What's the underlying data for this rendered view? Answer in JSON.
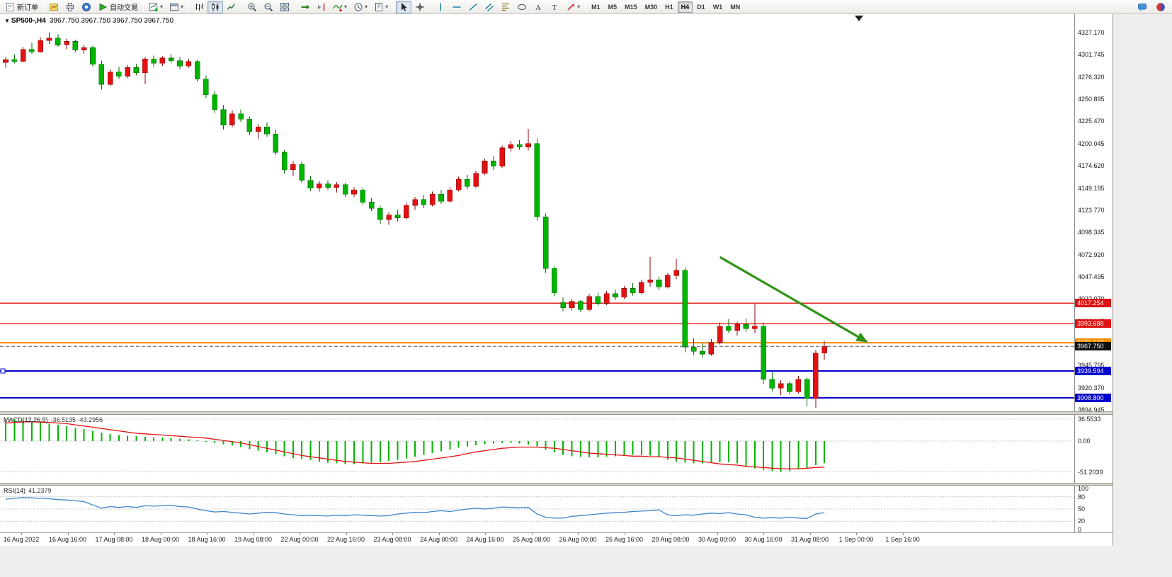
{
  "colors": {
    "bull": "#e31212",
    "bull_dark": "#8f0606",
    "bear": "#00b500",
    "bear_dark": "#006d00",
    "macd_hist": "#00b500",
    "macd_signal": "#e31212",
    "rsi_line": "#3d85c8",
    "grid_dash": "#c6c6c6",
    "chart_bg": "#ffffff",
    "toolbar_bg": "#ecebe8"
  },
  "toolbar": {
    "new_order_label": "新订单",
    "autotrading_label": "自动交易",
    "timeframes": [
      "M1",
      "M5",
      "M15",
      "M30",
      "H1",
      "H4",
      "D1",
      "W1",
      "MN"
    ],
    "active_timeframe": "H4",
    "groups": [
      {
        "items": [
          {
            "icon": "new-order-icon",
            "name": "new-order-button",
            "label_key": "new_order_label"
          }
        ]
      },
      {
        "items": [
          {
            "icon": "charts-icon",
            "name": "charts-button"
          },
          {
            "icon": "print-icon",
            "name": "print-button"
          },
          {
            "icon": "community-icon",
            "name": "community-button"
          },
          {
            "icon": "autotrading-icon",
            "name": "autotrading-button",
            "label_key": "autotrading_label"
          }
        ]
      },
      {
        "items": [
          {
            "icon": "new-chart-icon",
            "name": "new-chart-button",
            "caret": true
          },
          {
            "icon": "window-icon",
            "name": "profiles-button",
            "caret": true
          }
        ]
      },
      {
        "items": [
          {
            "icon": "bar-chart-icon",
            "name": "bar-chart-button"
          },
          {
            "icon": "candlestick-icon",
            "name": "candlestick-button",
            "active": true
          },
          {
            "icon": "line-chart-icon",
            "name": "line-chart-button"
          }
        ]
      },
      {
        "items": [
          {
            "icon": "zoom-in-icon",
            "name": "zoom-in-button"
          },
          {
            "icon": "zoom-out-icon",
            "name": "zoom-out-button"
          },
          {
            "icon": "tile-windows-icon",
            "name": "tile-windows-button"
          }
        ]
      },
      {
        "items": [
          {
            "icon": "auto-scroll-icon",
            "name": "auto-scroll-button"
          },
          {
            "icon": "chart-shift-icon",
            "name": "chart-shift-button"
          },
          {
            "icon": "indicators-icon",
            "name": "indicators-button",
            "caret": true
          },
          {
            "icon": "clock-icon",
            "name": "periods-button",
            "caret": true
          },
          {
            "icon": "template-icon",
            "name": "templates-button",
            "caret": true
          }
        ]
      },
      {
        "items": [
          {
            "icon": "cursor-icon",
            "name": "cursor-button",
            "active": true
          },
          {
            "icon": "crosshair-icon",
            "name": "crosshair-button"
          }
        ]
      },
      {
        "items": [
          {
            "icon": "vline-icon",
            "name": "vertical-line-button"
          },
          {
            "icon": "hline-icon",
            "name": "horizontal-line-button"
          },
          {
            "icon": "trendline-icon",
            "name": "trendline-button"
          },
          {
            "icon": "channel-icon",
            "name": "channel-button"
          },
          {
            "icon": "fibonacci-icon",
            "name": "fibonacci-button"
          },
          {
            "icon": "shapes-icon",
            "name": "shapes-button"
          },
          {
            "icon": "text-icon",
            "name": "text-button"
          },
          {
            "icon": "label-icon",
            "name": "text-label-button"
          },
          {
            "icon": "arrows-icon",
            "name": "arrows-button",
            "caret": true
          }
        ]
      },
      {
        "type": "timeframes"
      }
    ],
    "right_items": [
      {
        "icon": "chat-icon",
        "name": "chat-button"
      },
      {
        "icon": "record-icon",
        "name": "metaquotes-button"
      }
    ]
  },
  "header": {
    "symbol": "SP500-,H4",
    "ohlc": "3967.750 3967.750 3967.750 3967.750"
  },
  "price_axis": {
    "ticks": [
      "4327.170",
      "4301.745",
      "4276.320",
      "4250.895",
      "4225.470",
      "4200.045",
      "4174.620",
      "4149.195",
      "4123.770",
      "4098.345",
      "4072.920",
      "4047.495",
      "4022.070",
      "3996.645",
      "3971.220",
      "3945.795",
      "3920.370",
      "3894.945"
    ]
  },
  "hlines": [
    {
      "price": 4017.254,
      "label": "4017.254",
      "color": "#dd1111",
      "width": 1.4,
      "dashed": false,
      "tag_bg": "#dd1111"
    },
    {
      "price": 3993.688,
      "label": "3993.688",
      "color": "#dd1111",
      "width": 1.4,
      "dashed": false,
      "tag_bg": "#dd1111"
    },
    {
      "price": 3971.937,
      "label": "3971.937",
      "color": "#ff8c00",
      "width": 2,
      "dashed": false,
      "tag_bg": "#ff8c00"
    },
    {
      "price": 3967.75,
      "label": "3967.750",
      "color": "#555555",
      "width": 1,
      "dashed": true,
      "tag_bg": "#111111"
    },
    {
      "price": 3939.594,
      "label": "3939.594",
      "color": "#0000cc",
      "width": 2,
      "dashed": false,
      "tag_bg": "#0000cc",
      "handle": true
    },
    {
      "price": 3908.8,
      "label": "3908.800",
      "color": "#0000cc",
      "width": 2,
      "dashed": false,
      "tag_bg": "#0000cc"
    }
  ],
  "chart_data": {
    "type": "candlestick",
    "symbol": "SP500-",
    "timeframe": "H4",
    "ylim": [
      3893,
      4333
    ],
    "candles": [
      [
        4293,
        4299,
        4287,
        4296
      ],
      [
        4296,
        4302,
        4292,
        4294
      ],
      [
        4294,
        4311,
        4293,
        4308
      ],
      [
        4308,
        4316,
        4303,
        4305
      ],
      [
        4305,
        4322,
        4304,
        4318
      ],
      [
        4318,
        4327,
        4314,
        4321
      ],
      [
        4321,
        4325,
        4311,
        4313
      ],
      [
        4313,
        4320,
        4308,
        4317
      ],
      [
        4317,
        4319,
        4305,
        4307
      ],
      [
        4307,
        4313,
        4303,
        4310
      ],
      [
        4310,
        4312,
        4288,
        4291
      ],
      [
        4291,
        4295,
        4262,
        4268
      ],
      [
        4268,
        4285,
        4266,
        4282
      ],
      [
        4282,
        4288,
        4274,
        4277
      ],
      [
        4277,
        4290,
        4275,
        4287
      ],
      [
        4287,
        4291,
        4278,
        4281
      ],
      [
        4281,
        4299,
        4268,
        4297
      ],
      [
        4297,
        4301,
        4288,
        4292
      ],
      [
        4292,
        4300,
        4289,
        4298
      ],
      [
        4298,
        4303,
        4292,
        4295
      ],
      [
        4295,
        4299,
        4285,
        4289
      ],
      [
        4289,
        4297,
        4287,
        4294
      ],
      [
        4294,
        4296,
        4271,
        4274
      ],
      [
        4274,
        4278,
        4252,
        4256
      ],
      [
        4256,
        4260,
        4235,
        4239
      ],
      [
        4239,
        4244,
        4216,
        4221
      ],
      [
        4221,
        4238,
        4219,
        4234
      ],
      [
        4234,
        4239,
        4225,
        4228
      ],
      [
        4228,
        4231,
        4210,
        4214
      ],
      [
        4214,
        4222,
        4205,
        4219
      ],
      [
        4219,
        4224,
        4208,
        4211
      ],
      [
        4211,
        4216,
        4187,
        4190
      ],
      [
        4190,
        4193,
        4166,
        4170
      ],
      [
        4170,
        4180,
        4163,
        4176
      ],
      [
        4176,
        4179,
        4155,
        4158
      ],
      [
        4158,
        4163,
        4146,
        4149
      ],
      [
        4149,
        4157,
        4145,
        4154
      ],
      [
        4154,
        4158,
        4147,
        4150
      ],
      [
        4150,
        4156,
        4144,
        4153
      ],
      [
        4153,
        4155,
        4139,
        4142
      ],
      [
        4142,
        4150,
        4139,
        4147
      ],
      [
        4147,
        4149,
        4130,
        4133
      ],
      [
        4133,
        4138,
        4123,
        4126
      ],
      [
        4126,
        4129,
        4108,
        4113
      ],
      [
        4113,
        4121,
        4107,
        4118
      ],
      [
        4118,
        4124,
        4111,
        4115
      ],
      [
        4115,
        4132,
        4113,
        4129
      ],
      [
        4129,
        4139,
        4124,
        4136
      ],
      [
        4136,
        4141,
        4126,
        4130
      ],
      [
        4130,
        4145,
        4128,
        4142
      ],
      [
        4142,
        4147,
        4131,
        4134
      ],
      [
        4134,
        4150,
        4132,
        4147
      ],
      [
        4147,
        4162,
        4145,
        4159
      ],
      [
        4159,
        4164,
        4148,
        4151
      ],
      [
        4151,
        4169,
        4149,
        4166
      ],
      [
        4166,
        4183,
        4164,
        4180
      ],
      [
        4180,
        4186,
        4170,
        4174
      ],
      [
        4174,
        4198,
        4172,
        4195
      ],
      [
        4195,
        4203,
        4191,
        4199
      ],
      [
        4199,
        4204,
        4193,
        4196
      ],
      [
        4196,
        4217,
        4192,
        4200
      ],
      [
        4200,
        4206,
        4112,
        4116
      ],
      [
        4116,
        4120,
        4052,
        4057
      ],
      [
        4057,
        4059,
        4025,
        4029
      ],
      [
        4018,
        4024,
        4008,
        4012
      ],
      [
        4012,
        4022,
        4009,
        4019
      ],
      [
        4019,
        4021,
        4007,
        4010
      ],
      [
        4010,
        4028,
        4008,
        4025
      ],
      [
        4025,
        4029,
        4014,
        4017
      ],
      [
        4017,
        4031,
        4015,
        4028
      ],
      [
        4028,
        4033,
        4021,
        4024
      ],
      [
        4024,
        4037,
        4022,
        4034
      ],
      [
        4034,
        4040,
        4026,
        4029
      ],
      [
        4029,
        4044,
        4027,
        4041
      ],
      [
        4041,
        4070,
        4036,
        4044
      ],
      [
        4044,
        4048,
        4032,
        4036
      ],
      [
        4036,
        4052,
        4034,
        4049
      ],
      [
        4049,
        4068,
        4045,
        4055
      ],
      [
        4055,
        4058,
        3961,
        3967
      ],
      [
        3967,
        3977,
        3958,
        3962
      ],
      [
        3962,
        3972,
        3955,
        3959
      ],
      [
        3959,
        3976,
        3957,
        3972
      ],
      [
        3972,
        3995,
        3970,
        3991
      ],
      [
        3991,
        3999,
        3983,
        3986
      ],
      [
        3986,
        3996,
        3980,
        3993
      ],
      [
        3993,
        4000,
        3984,
        3988
      ],
      [
        3988,
        4016,
        3983,
        3991
      ],
      [
        3991,
        3995,
        3925,
        3930
      ],
      [
        3930,
        3938,
        3916,
        3920
      ],
      [
        3920,
        3929,
        3912,
        3925
      ],
      [
        3925,
        3928,
        3913,
        3916
      ],
      [
        3916,
        3934,
        3914,
        3930
      ],
      [
        3930,
        3932,
        3899,
        3908
      ],
      [
        3908,
        3964,
        3897,
        3960
      ],
      [
        3960,
        3974,
        3952,
        3967.75
      ]
    ],
    "indicators": {
      "macd": {
        "label": "MACD(12,26,9)",
        "values_text": "-36.5135 -43.2956",
        "scale": [
          {
            "v": 36.5533,
            "t": "36.5533"
          },
          {
            "v": 0,
            "t": "0.00"
          },
          {
            "v": -51.2039,
            "t": "-51.2039"
          }
        ],
        "histogram": [
          34,
          36.5,
          35,
          33,
          31,
          29,
          27,
          25,
          22,
          20,
          17,
          14,
          12,
          10,
          9,
          8,
          7,
          6,
          6,
          5,
          4,
          3,
          1,
          -1,
          -3,
          -5,
          -7,
          -10,
          -13,
          -16,
          -19,
          -22,
          -25,
          -28,
          -30,
          -32,
          -34,
          -36,
          -37,
          -38,
          -38,
          -37,
          -36,
          -35,
          -33,
          -31,
          -29,
          -26,
          -23,
          -20,
          -17,
          -14,
          -11,
          -9,
          -7,
          -5,
          -4,
          -3,
          -3,
          -4,
          -6,
          -9,
          -14,
          -19,
          -23,
          -25,
          -26,
          -27,
          -27,
          -26,
          -25,
          -24,
          -23,
          -23,
          -24,
          -27,
          -31,
          -34,
          -36,
          -37,
          -37,
          -36,
          -35,
          -35,
          -37,
          -41,
          -45,
          -48,
          -50,
          -51,
          -50,
          -47,
          -44,
          -40,
          -36.5
        ],
        "signal": [
          30,
          31,
          32,
          32,
          31.5,
          31,
          30,
          29,
          27,
          25,
          23,
          21,
          19,
          17,
          15,
          13,
          12,
          11,
          10,
          9,
          8,
          7,
          6,
          5,
          3,
          1,
          -1,
          -3,
          -6,
          -9,
          -12,
          -15,
          -18,
          -21,
          -24,
          -26,
          -28,
          -30,
          -32,
          -34,
          -35,
          -36,
          -37,
          -37,
          -37,
          -36,
          -35,
          -34,
          -32,
          -30,
          -28,
          -26,
          -24,
          -21,
          -18,
          -16,
          -14,
          -12,
          -11,
          -10,
          -10,
          -10,
          -11,
          -12,
          -14,
          -16,
          -18,
          -20,
          -21,
          -22,
          -23,
          -24,
          -25,
          -25,
          -26,
          -26,
          -27,
          -28,
          -30,
          -32,
          -34,
          -36,
          -38,
          -39,
          -40,
          -42,
          -43,
          -44,
          -45,
          -46,
          -46,
          -46,
          -45,
          -44,
          -43.3
        ]
      },
      "rsi": {
        "label": "RSI(14)",
        "value_text": "41.2379",
        "levels": [
          80,
          50,
          20
        ],
        "scale": [
          {
            "v": 100,
            "t": "100"
          },
          {
            "v": 80,
            "t": "80"
          },
          {
            "v": 50,
            "t": "50"
          },
          {
            "v": 20,
            "t": "20"
          },
          {
            "v": 0,
            "t": "0"
          }
        ],
        "series": [
          74,
          76,
          78,
          77,
          76,
          75,
          73,
          72,
          70,
          68,
          60,
          52,
          56,
          54,
          56,
          54,
          58,
          57,
          58,
          59,
          56,
          55,
          50,
          46,
          43,
          44,
          42,
          40,
          38,
          40,
          42,
          41,
          38,
          36,
          34,
          35,
          34,
          33,
          35,
          34,
          36,
          35,
          34,
          33,
          34,
          38,
          40,
          42,
          41,
          44,
          46,
          44,
          47,
          50,
          52,
          50,
          52,
          55,
          54,
          53,
          54,
          38,
          30,
          28,
          28,
          32,
          34,
          36,
          38,
          40,
          41,
          42,
          44,
          45,
          46,
          48,
          36,
          34,
          36,
          35,
          38,
          40,
          39,
          41,
          38,
          36,
          30,
          28,
          29,
          28,
          30,
          28,
          27,
          38,
          41.2
        ]
      }
    },
    "objects": {
      "arrow": {
        "from_bar": 82,
        "from_price": 4070,
        "to_bar": 98.9,
        "to_price": 3972.8,
        "color": "#2f9416"
      }
    },
    "time_axis": [
      "16 Aug 2022",
      "16 Aug 16:00",
      "17 Aug 08:00",
      "18 Aug 00:00",
      "18 Aug 16:00",
      "19 Aug 08:00",
      "22 Aug 00:00",
      "22 Aug 16:00",
      "23 Aug 08:00",
      "24 Aug 00:00",
      "24 Aug 16:00",
      "25 Aug 08:00",
      "26 Aug 00:00",
      "26 Aug 16:00",
      "29 Aug 08:00",
      "30 Aug 00:00",
      "30 Aug 16:00",
      "31 Aug 08:00",
      "1 Sep 00:00",
      "1 Sep 16:00"
    ]
  }
}
